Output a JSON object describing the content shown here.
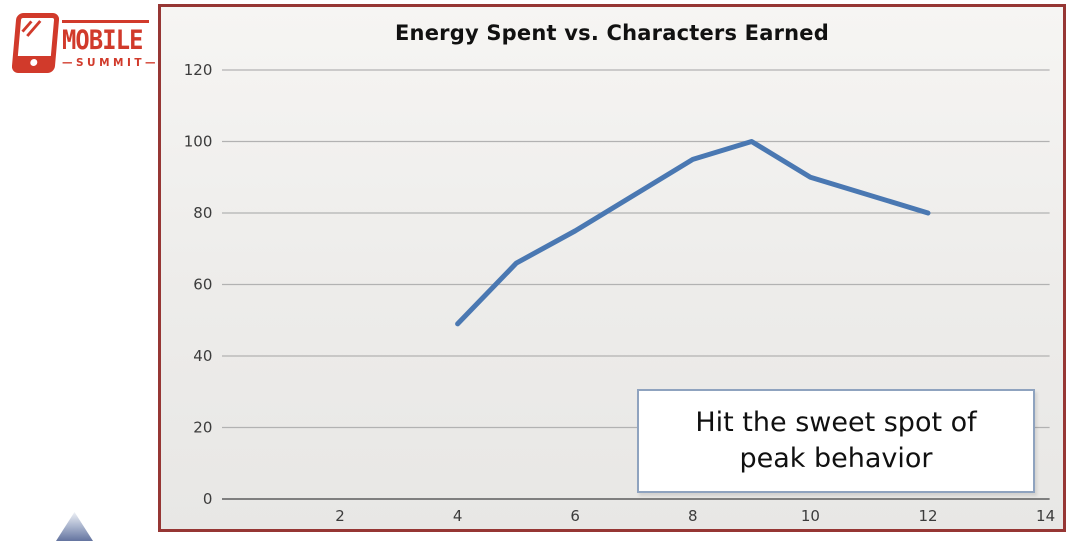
{
  "slide": {
    "background": "#ffffff"
  },
  "logo": {
    "brand": "MOBILE",
    "summit": "—SUMMIT—",
    "color": "#d13a2b",
    "icon": "phone-icon"
  },
  "chart_data": {
    "type": "line",
    "title": "Energy Spent vs. Characters Earned",
    "x": [
      4,
      5,
      6,
      7,
      8,
      9,
      10,
      12
    ],
    "y": [
      49,
      66,
      75,
      85,
      95,
      100,
      90,
      80
    ],
    "xlabel": "",
    "ylabel": "",
    "xlim": [
      0,
      14
    ],
    "ylim": [
      0,
      120
    ],
    "xticks": [
      2,
      4,
      6,
      8,
      10,
      12,
      14
    ],
    "yticks": [
      0,
      20,
      40,
      60,
      80,
      100,
      120
    ],
    "grid": "horizontal",
    "legend": "none",
    "line_color": "#4a78b2",
    "line_width": 5,
    "grid_color": "#b2b2b2",
    "axis_color": "#7f7f7f",
    "tick_color": "#3c3c3c",
    "frame_color": "#963634",
    "annotation": {
      "line1": "Hit the sweet spot of",
      "line2": "peak behavior",
      "border_color": "#8fa3bf"
    }
  },
  "decor": {
    "pyramid_gradient_top": "#eef1f6",
    "pyramid_gradient_bottom": "#64749f"
  }
}
